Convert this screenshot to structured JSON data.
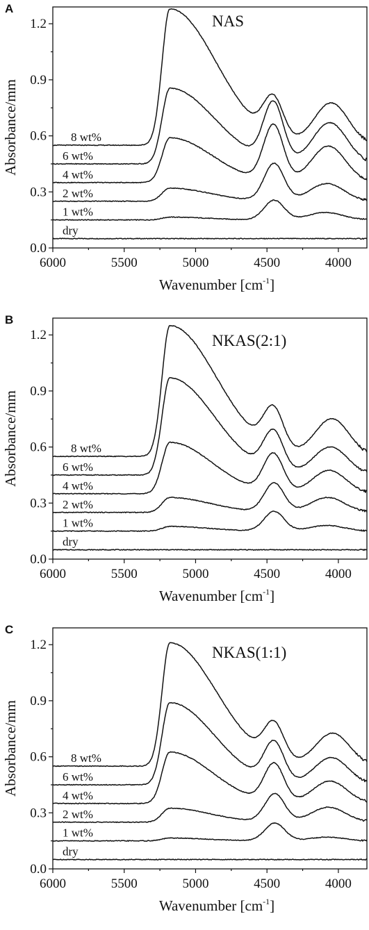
{
  "figure": {
    "panels_common": {
      "xlabel_main": "Wavenumber [cm",
      "xlabel_sup": "-1",
      "xlabel_end": "]",
      "ylabel": "Absorbance/mm",
      "xticks": [
        "6000",
        "5500",
        "5000",
        "4500",
        "4000"
      ],
      "yticks": [
        "0.0",
        "0.3",
        "0.6",
        "0.9",
        "1.2"
      ]
    }
  },
  "chart_data": [
    {
      "type": "line",
      "panel": "A",
      "sample": "NAS",
      "xlabel": "Wavenumber [cm-1]",
      "ylabel": "Absorbance/mm",
      "xlim": [
        6000,
        3800
      ],
      "ylim": [
        0.0,
        1.29
      ],
      "x_reversed": true,
      "grid": false,
      "series": [
        {
          "name": "dry",
          "baseline": 0.05,
          "peaks": []
        },
        {
          "name": "1 wt%",
          "baseline": 0.15,
          "peaks": [
            {
              "x": 5180,
              "y": 0.165
            },
            {
              "x": 4450,
              "y": 0.255
            },
            {
              "x": 4090,
              "y": 0.19
            }
          ]
        },
        {
          "name": "2 wt%",
          "baseline": 0.25,
          "peaks": [
            {
              "x": 5180,
              "y": 0.32
            },
            {
              "x": 4450,
              "y": 0.45
            },
            {
              "x": 4080,
              "y": 0.345
            }
          ]
        },
        {
          "name": "4 wt%",
          "baseline": 0.35,
          "peaks": [
            {
              "x": 5180,
              "y": 0.59
            },
            {
              "x": 4455,
              "y": 0.65
            },
            {
              "x": 4070,
              "y": 0.545
            }
          ]
        },
        {
          "name": "6 wt%",
          "baseline": 0.45,
          "peaks": [
            {
              "x": 5180,
              "y": 0.855
            },
            {
              "x": 4455,
              "y": 0.76
            },
            {
              "x": 4060,
              "y": 0.67
            }
          ]
        },
        {
          "name": "8 wt%",
          "baseline": 0.55,
          "peaks": [
            {
              "x": 5180,
              "y": 1.28
            },
            {
              "x": 4455,
              "y": 0.76
            },
            {
              "x": 4050,
              "y": 0.775
            }
          ]
        }
      ]
    },
    {
      "type": "line",
      "panel": "B",
      "sample": "NKAS(2:1)",
      "xlabel": "Wavenumber [cm-1]",
      "ylabel": "Absorbance/mm",
      "xlim": [
        6000,
        3800
      ],
      "ylim": [
        0.0,
        1.29
      ],
      "x_reversed": true,
      "grid": false,
      "series": [
        {
          "name": "dry",
          "baseline": 0.05,
          "peaks": []
        },
        {
          "name": "1 wt%",
          "baseline": 0.15,
          "peaks": [
            {
              "x": 5180,
              "y": 0.175
            },
            {
              "x": 4450,
              "y": 0.255
            },
            {
              "x": 4080,
              "y": 0.18
            }
          ]
        },
        {
          "name": "2 wt%",
          "baseline": 0.25,
          "peaks": [
            {
              "x": 5180,
              "y": 0.33
            },
            {
              "x": 4450,
              "y": 0.405
            },
            {
              "x": 4075,
              "y": 0.33
            }
          ]
        },
        {
          "name": "4 wt%",
          "baseline": 0.35,
          "peaks": [
            {
              "x": 5180,
              "y": 0.625
            },
            {
              "x": 4455,
              "y": 0.555
            },
            {
              "x": 4065,
              "y": 0.475
            }
          ]
        },
        {
          "name": "6 wt%",
          "baseline": 0.45,
          "peaks": [
            {
              "x": 5180,
              "y": 0.97
            },
            {
              "x": 4455,
              "y": 0.66
            },
            {
              "x": 4055,
              "y": 0.6
            }
          ]
        },
        {
          "name": "8 wt%",
          "baseline": 0.55,
          "peaks": [
            {
              "x": 5180,
              "y": 1.25
            },
            {
              "x": 4455,
              "y": 0.765
            },
            {
              "x": 4045,
              "y": 0.75
            }
          ]
        }
      ]
    },
    {
      "type": "line",
      "panel": "C",
      "sample": "NKAS(1:1)",
      "xlabel": "Wavenumber [cm-1]",
      "ylabel": "Absorbance/mm",
      "xlim": [
        6000,
        3800
      ],
      "ylim": [
        0.0,
        1.29
      ],
      "x_reversed": true,
      "grid": false,
      "series": [
        {
          "name": "dry",
          "baseline": 0.05,
          "peaks": []
        },
        {
          "name": "1 wt%",
          "baseline": 0.15,
          "peaks": [
            {
              "x": 5180,
              "y": 0.165
            },
            {
              "x": 4445,
              "y": 0.245
            },
            {
              "x": 4080,
              "y": 0.17
            }
          ]
        },
        {
          "name": "2 wt%",
          "baseline": 0.25,
          "peaks": [
            {
              "x": 5180,
              "y": 0.325
            },
            {
              "x": 4445,
              "y": 0.4
            },
            {
              "x": 4070,
              "y": 0.33
            }
          ]
        },
        {
          "name": "4 wt%",
          "baseline": 0.35,
          "peaks": [
            {
              "x": 5180,
              "y": 0.625
            },
            {
              "x": 4450,
              "y": 0.555
            },
            {
              "x": 4060,
              "y": 0.47
            }
          ]
        },
        {
          "name": "6 wt%",
          "baseline": 0.45,
          "peaks": [
            {
              "x": 5180,
              "y": 0.89
            },
            {
              "x": 4450,
              "y": 0.66
            },
            {
              "x": 4050,
              "y": 0.595
            }
          ]
        },
        {
          "name": "8 wt%",
          "baseline": 0.55,
          "peaks": [
            {
              "x": 5180,
              "y": 1.21
            },
            {
              "x": 4450,
              "y": 0.74
            },
            {
              "x": 4040,
              "y": 0.725
            }
          ]
        }
      ]
    }
  ]
}
